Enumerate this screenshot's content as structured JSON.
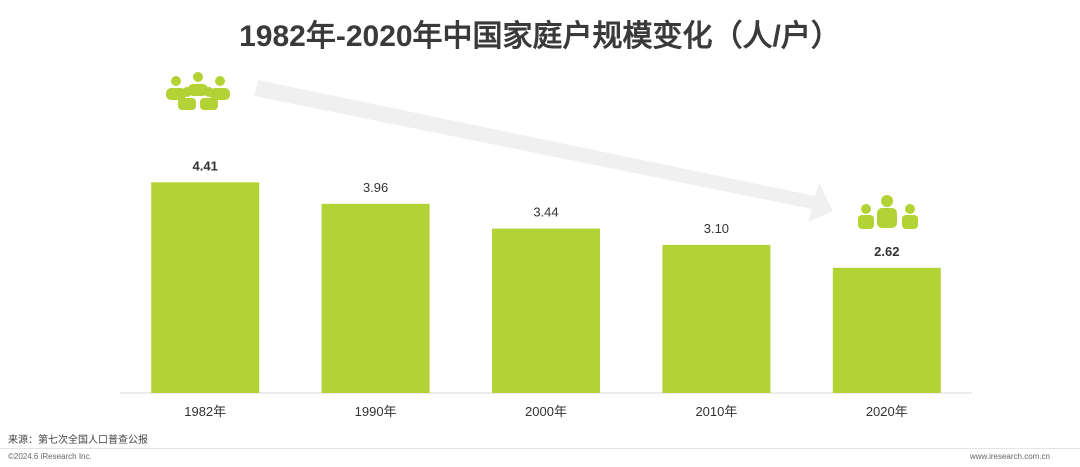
{
  "chart_data": {
    "type": "bar",
    "title": "1982年-2020年中国家庭户规模变化（人/户）",
    "categories": [
      "1982年",
      "1990年",
      "2000年",
      "2010年",
      "2020年"
    ],
    "values": [
      4.41,
      3.96,
      3.44,
      3.1,
      2.62
    ],
    "value_labels": [
      "4.41",
      "3.96",
      "3.44",
      "3.10",
      "2.62"
    ],
    "bold_labels": [
      true,
      false,
      false,
      false,
      true
    ],
    "ylim": [
      0,
      4.5
    ],
    "xlabel": "",
    "ylabel": "",
    "grid": false,
    "bar_color": "#b2d235",
    "trend_arrow_color": "#f0f0f0",
    "icons": [
      "family-group-icon",
      "small-family-icon"
    ]
  },
  "footer": {
    "source": "来源：第七次全国人口普查公报",
    "copyright": "©2024.6 iResearch Inc.",
    "website": "www.iresearch.com.cn"
  }
}
